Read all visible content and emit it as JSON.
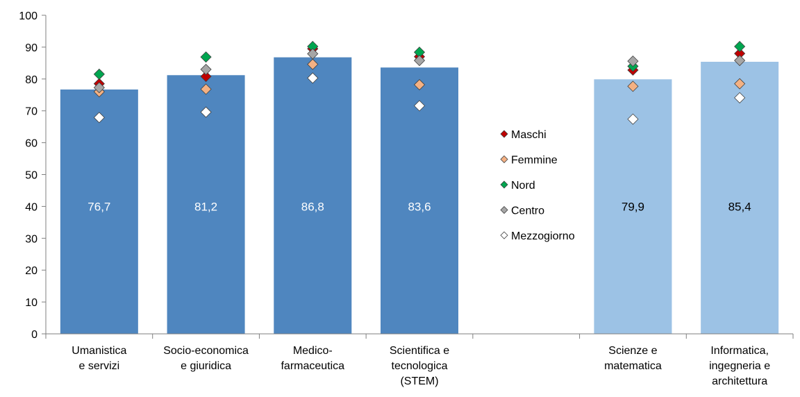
{
  "chart_data": {
    "type": "bar",
    "title": "",
    "xlabel": "",
    "ylabel": "",
    "ylim": [
      0,
      100
    ],
    "yticks": [
      0,
      10,
      20,
      30,
      40,
      50,
      60,
      70,
      80,
      90,
      100
    ],
    "grid": false,
    "legend_placement": "center",
    "categories": [
      {
        "lines": [
          "Umanistica",
          "e servizi"
        ],
        "value": 76.7,
        "label": "76,7",
        "style": "dark"
      },
      {
        "lines": [
          "Socio-economica",
          "e giuridica"
        ],
        "value": 81.2,
        "label": "81,2",
        "style": "dark"
      },
      {
        "lines": [
          "Medico-",
          "farmaceutica"
        ],
        "value": 86.8,
        "label": "86,8",
        "style": "dark"
      },
      {
        "lines": [
          "Scientifica e",
          "tecnologica",
          "(STEM)"
        ],
        "value": 83.6,
        "label": "83,6",
        "style": "dark"
      },
      {
        "lines": [],
        "value": null,
        "label": "",
        "style": "gap"
      },
      {
        "lines": [
          "Scienze e",
          "matematica"
        ],
        "value": 79.9,
        "label": "79,9",
        "style": "light"
      },
      {
        "lines": [
          "Informatica,",
          "ingegneria e",
          "architettura"
        ],
        "value": 85.4,
        "label": "85,4",
        "style": "light"
      }
    ],
    "series": [
      {
        "name": "Maschi",
        "values": [
          78.5,
          80.8,
          89.5,
          87.0,
          null,
          82.8,
          88.0
        ]
      },
      {
        "name": "Femmine",
        "values": [
          76.0,
          76.8,
          84.6,
          78.2,
          null,
          77.7,
          78.5
        ]
      },
      {
        "name": "Nord",
        "values": [
          81.5,
          86.9,
          90.2,
          88.4,
          null,
          84.0,
          90.2
        ]
      },
      {
        "name": "Centro",
        "values": [
          77.3,
          83.0,
          87.9,
          85.8,
          null,
          85.6,
          85.8
        ]
      },
      {
        "name": "Mezzogiorno",
        "values": [
          67.9,
          69.6,
          80.3,
          71.6,
          null,
          67.4,
          74.1
        ]
      }
    ]
  },
  "colors": {
    "bar_dark": "#4f86bf",
    "bar_light": "#9cc2e5",
    "bar_label_dark": "#ffffff",
    "bar_label_light": "#000000",
    "Maschi": "#c00000",
    "Femmine": "#f4b183",
    "Nord": "#00a650",
    "Centro": "#a6a6a6",
    "Mezzogiorno": "#ffffff",
    "axis": "#7f7f7f",
    "marker_stroke": "#404040"
  }
}
